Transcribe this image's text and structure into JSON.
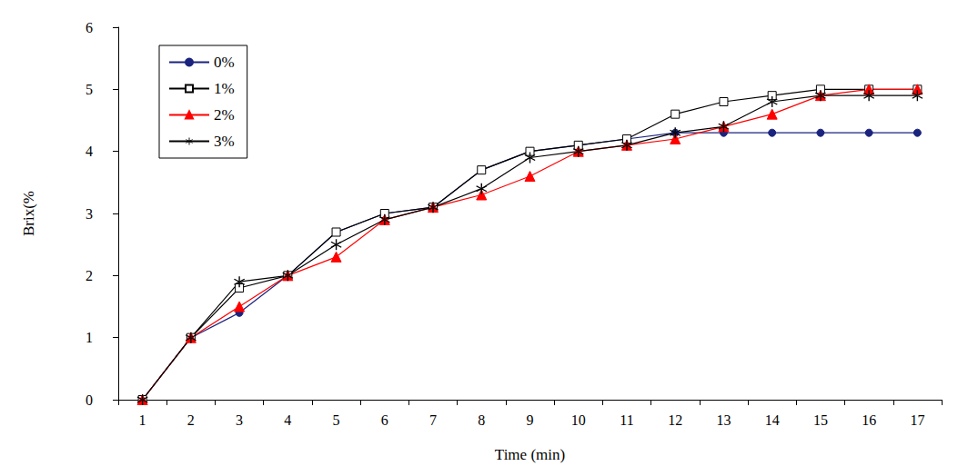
{
  "chart_data": {
    "type": "line",
    "x_label": "Time (min)",
    "y_label": "Brix(%",
    "categories": [
      "1",
      "2",
      "3",
      "4",
      "5",
      "6",
      "7",
      "8",
      "9",
      "10",
      "11",
      "12",
      "13",
      "14",
      "15",
      "16",
      "17"
    ],
    "series": [
      {
        "name": "0%",
        "color": "#1a237e",
        "marker": "circle",
        "values": [
          0,
          1,
          1.4,
          2,
          2.7,
          3,
          3.1,
          3.7,
          4.0,
          4.1,
          4.2,
          4.3,
          4.3,
          4.3,
          4.3,
          4.3,
          4.3
        ]
      },
      {
        "name": "1%",
        "color": "#000000",
        "marker": "open_square",
        "values": [
          0,
          1,
          1.8,
          2,
          2.7,
          3,
          3.1,
          3.7,
          4.0,
          4.1,
          4.2,
          4.6,
          4.8,
          4.9,
          5.0,
          5.0,
          5.0
        ]
      },
      {
        "name": "2%",
        "color": "#ff0000",
        "marker": "triangle",
        "values": [
          0,
          1,
          1.5,
          2,
          2.3,
          2.9,
          3.1,
          3.3,
          3.6,
          4.0,
          4.1,
          4.2,
          4.4,
          4.6,
          4.9,
          5.0,
          5.0
        ]
      },
      {
        "name": "3%",
        "color": "#000000",
        "marker": "asterisk",
        "values": [
          0,
          1,
          1.9,
          2,
          2.5,
          2.9,
          3.1,
          3.4,
          3.9,
          4.0,
          4.1,
          4.3,
          4.4,
          4.8,
          4.9,
          4.9,
          4.9
        ]
      }
    ],
    "ylim": [
      0,
      6
    ],
    "yticks": [
      0,
      1,
      2,
      3,
      4,
      5,
      6
    ],
    "legend": "upper left",
    "grid": false
  }
}
